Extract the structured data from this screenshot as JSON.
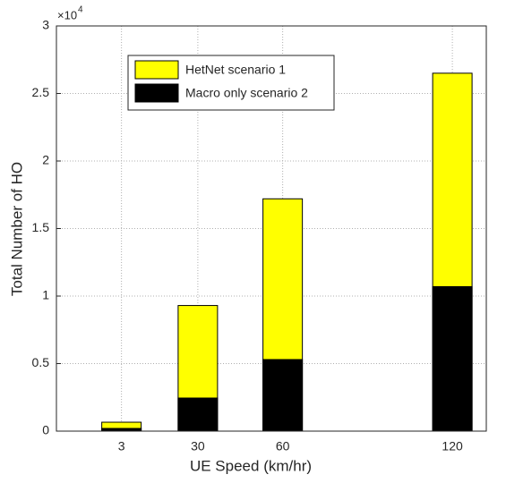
{
  "chart_data": {
    "type": "bar",
    "overlay": true,
    "x": [
      3,
      30,
      60,
      120
    ],
    "xticks": [
      3,
      30,
      60,
      120
    ],
    "xlim": [
      -20,
      132
    ],
    "ylim": [
      0,
      3
    ],
    "yticks": [
      0,
      0.5,
      1,
      1.5,
      2,
      2.5,
      3
    ],
    "y_exponent_base": "×10",
    "y_exponent_power": "4",
    "xlabel": "UE Speed (km/hr)",
    "ylabel": "Total Number of HO",
    "grid": true,
    "legend": "upper left",
    "series": [
      {
        "name": "HetNet scenario 1",
        "color": "#ffff00",
        "values": [
          0.066,
          0.93,
          1.72,
          2.65
        ]
      },
      {
        "name": "Macro only scenario 2",
        "color": "#000000",
        "values": [
          0.02,
          0.245,
          0.53,
          1.07
        ]
      }
    ]
  }
}
